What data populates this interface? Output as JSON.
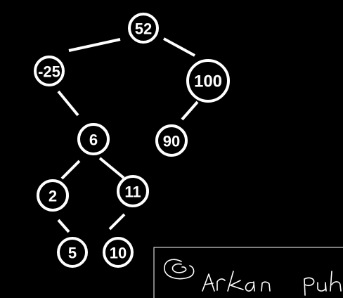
{
  "diagram": {
    "type": "binary-search-tree",
    "nodes": [
      {
        "id": "n52",
        "label": "52"
      },
      {
        "id": "n25",
        "label": "-25"
      },
      {
        "id": "n100",
        "label": "100"
      },
      {
        "id": "n6",
        "label": "6"
      },
      {
        "id": "n90",
        "label": "90"
      },
      {
        "id": "n2",
        "label": "2"
      },
      {
        "id": "n11",
        "label": "11"
      },
      {
        "id": "n5",
        "label": "5"
      },
      {
        "id": "n10",
        "label": "10"
      }
    ],
    "edges": [
      {
        "from": "n52",
        "to": "n25"
      },
      {
        "from": "n52",
        "to": "n100"
      },
      {
        "from": "n25",
        "to": "n6"
      },
      {
        "from": "n100",
        "to": "n90"
      },
      {
        "from": "n6",
        "to": "n2"
      },
      {
        "from": "n6",
        "to": "n11"
      },
      {
        "from": "n2",
        "to": "n5"
      },
      {
        "from": "n11",
        "to": "n10"
      }
    ]
  },
  "signature": {
    "text": "© Arkan Puh"
  },
  "colors": {
    "background": "#000000",
    "foreground": "#ffffff"
  }
}
